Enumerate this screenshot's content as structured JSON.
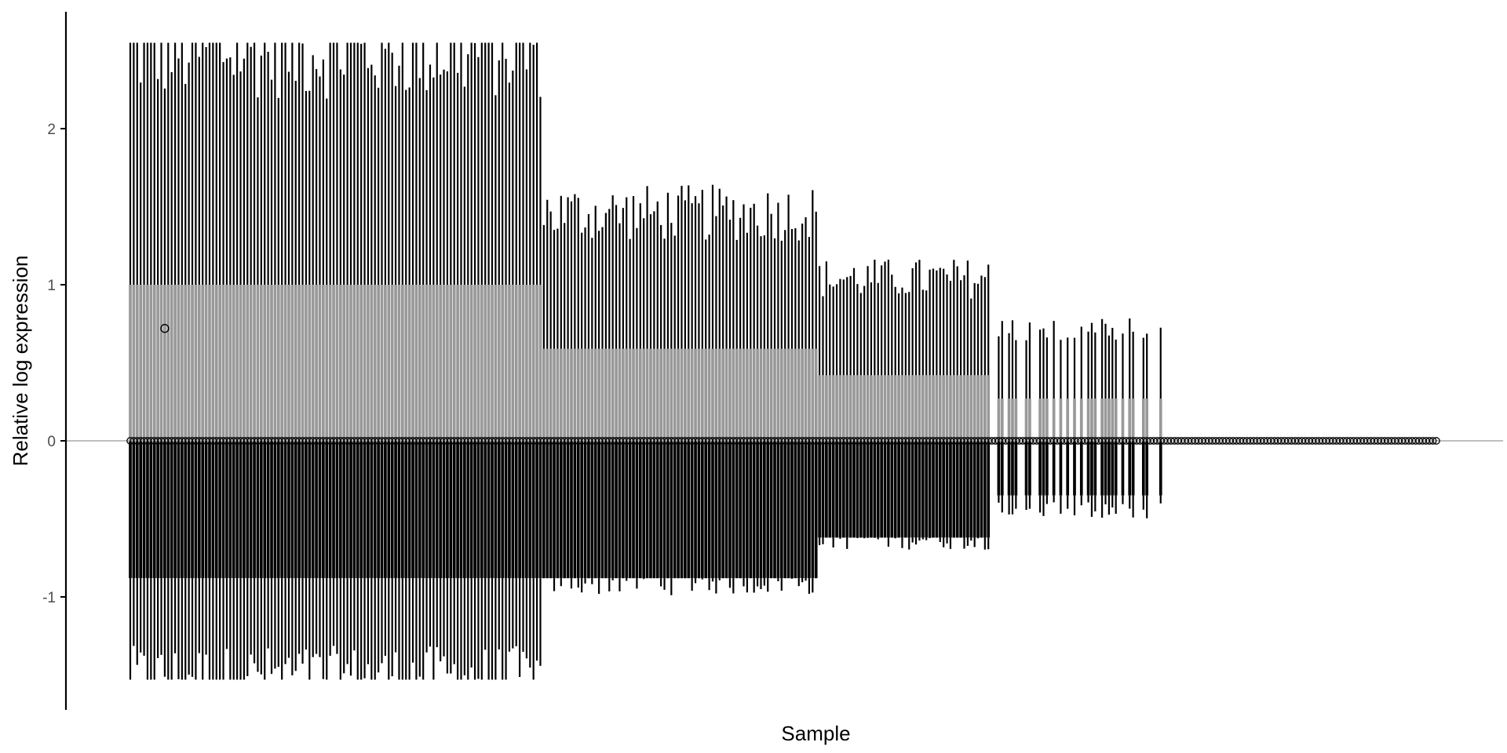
{
  "chart_data": {
    "type": "boxplot",
    "title": "",
    "xlabel": "Sample",
    "ylabel": "Relative log expression",
    "ylim": [
      -1.55,
      2.6
    ],
    "yticks": [
      -1,
      0,
      1,
      2
    ],
    "reference_line": 0,
    "grid": false,
    "legend": "none",
    "colors": {
      "box_fill": "#999999",
      "whisker": "#000000",
      "median_marker": "#000000",
      "reference_line": "#aaaaaa",
      "axis": "#000000"
    },
    "n_samples": 380,
    "samples_with_spread": 300,
    "summary_segments": [
      {
        "from_sample": 1,
        "to_sample": 120,
        "q1": -0.88,
        "median": 0,
        "q3": 1.0,
        "whisker_low": -1.5,
        "whisker_high": 2.5
      },
      {
        "from_sample": 121,
        "to_sample": 200,
        "q1": -0.88,
        "median": 0,
        "q3": 0.59,
        "whisker_low": -0.88,
        "whisker_high": 1.46
      },
      {
        "from_sample": 201,
        "to_sample": 250,
        "q1": -0.62,
        "median": 0,
        "q3": 0.42,
        "whisker_low": -0.62,
        "whisker_high": 1.04
      },
      {
        "from_sample": 251,
        "to_sample": 300,
        "q1": -0.35,
        "median": 0,
        "q3": 0.27,
        "whisker_low": -0.45,
        "whisker_high": 0.7
      },
      {
        "from_sample": 301,
        "to_sample": 380,
        "q1": 0,
        "median": 0,
        "q3": 0,
        "whisker_low": 0,
        "whisker_high": 0
      }
    ],
    "outliers": [
      {
        "sample": 11,
        "value": 0.72
      }
    ]
  }
}
